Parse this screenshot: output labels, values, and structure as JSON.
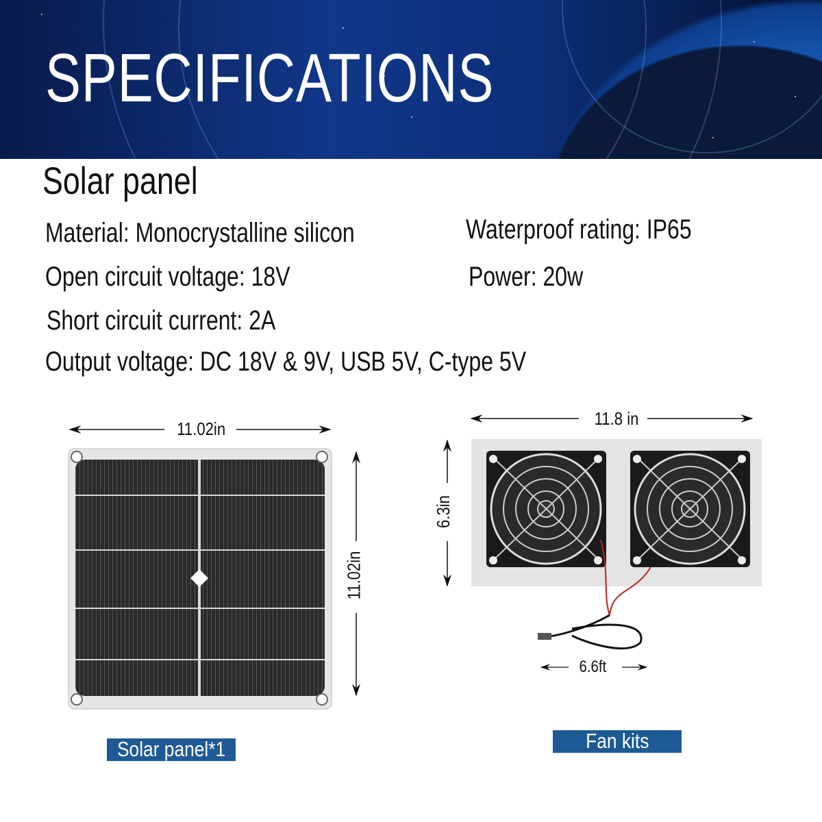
{
  "banner": {
    "title": "SPECIFICATIONS"
  },
  "section_title": "Solar panel",
  "specs": {
    "material": "Material: Monocrystalline silicon",
    "open_circuit_voltage": "Open circuit voltage: 18V",
    "short_circuit_current": "Short circuit current: 2A",
    "output_voltage": "Output voltage: DC 18V & 9V, USB 5V, C-type 5V",
    "waterproof_rating": "Waterproof rating: IP65",
    "power": "Power: 20w"
  },
  "solar_panel": {
    "width_label": "11.02in",
    "height_label": "11.02in",
    "caption": "Solar  panel*1"
  },
  "fan_kit": {
    "width_label": "11.8 in",
    "height_label": "6.3in",
    "cable_label": "6.6ft",
    "caption": "Fan kits"
  },
  "colors": {
    "caption_bg": "#1d5a96",
    "banner": "#11378a"
  }
}
